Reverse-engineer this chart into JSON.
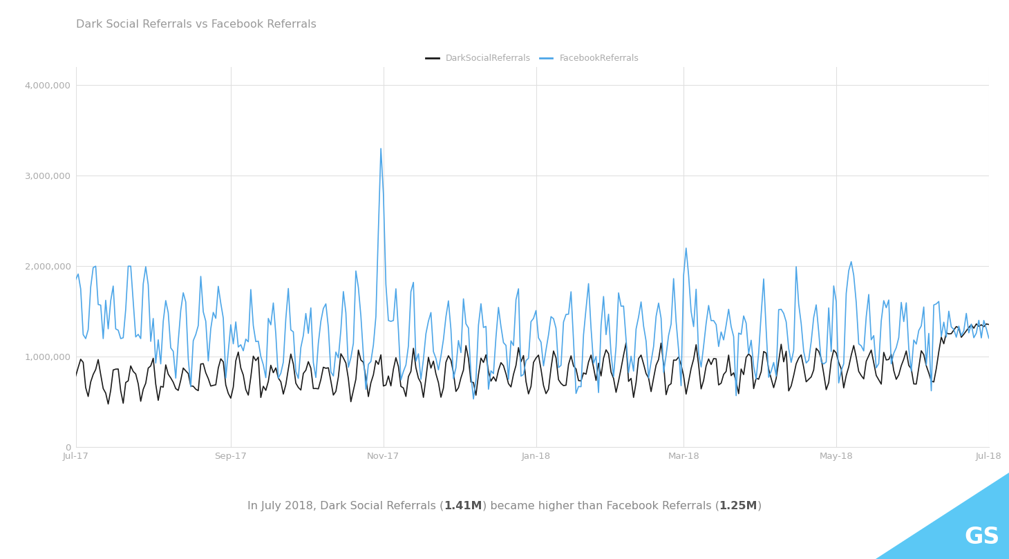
{
  "title": "Dark Social Referrals vs Facebook Referrals",
  "legend_labels": [
    "DarkSocialReferrals",
    "FacebookReferrals"
  ],
  "dark_color": "#1a1a1a",
  "fb_color": "#4da6e8",
  "background_color": "#ffffff",
  "grid_color": "#e0e0e0",
  "title_color": "#999999",
  "tick_color": "#aaaaaa",
  "annotation_normal_color": "#888888",
  "annotation_bold_color": "#555555",
  "yticks": [
    0,
    1000000,
    2000000,
    3000000,
    4000000
  ],
  "ytick_labels": [
    "0",
    "1,000,000",
    "2,000,000",
    "3,000,000",
    "4,000,000"
  ],
  "ylim": [
    0,
    4200000
  ],
  "xtick_labels": [
    "Jul-17",
    "Sep-17",
    "Nov-17",
    "Jan-18",
    "Mar-18",
    "May-18",
    "Jul-18"
  ],
  "gs_color": "#5bc8f5",
  "annotation_parts": [
    {
      "text": "In July 2018, Dark Social Referrals (",
      "bold": false
    },
    {
      "text": "1.41M",
      "bold": true
    },
    {
      "text": ") became higher than Facebook Referrals (",
      "bold": false
    },
    {
      "text": "1.25M",
      "bold": true
    },
    {
      "text": ")",
      "bold": false
    }
  ]
}
